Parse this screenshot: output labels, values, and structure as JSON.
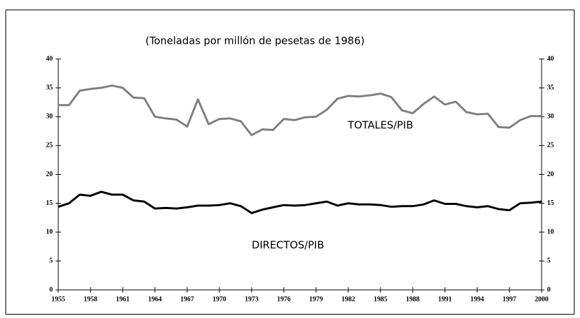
{
  "chart_data": {
    "type": "line",
    "title": "(Toneladas por millón de pesetas de 1986)",
    "x": [
      1955,
      1956,
      1957,
      1958,
      1959,
      1960,
      1961,
      1962,
      1963,
      1964,
      1965,
      1966,
      1967,
      1968,
      1969,
      1970,
      1971,
      1972,
      1973,
      1974,
      1975,
      1976,
      1977,
      1978,
      1979,
      1980,
      1981,
      1982,
      1983,
      1984,
      1985,
      1986,
      1987,
      1988,
      1989,
      1990,
      1991,
      1992,
      1993,
      1994,
      1995,
      1996,
      1997,
      1998,
      1999,
      2000
    ],
    "series": [
      {
        "name": "TOTALES/PIB",
        "color": "#7f7f7f",
        "values": [
          32,
          32,
          34.5,
          34.8,
          35,
          35.4,
          35,
          33.3,
          33.2,
          30,
          29.7,
          29.5,
          28.3,
          33,
          28.7,
          29.6,
          29.7,
          29.2,
          26.8,
          27.8,
          27.7,
          29.6,
          29.4,
          29.9,
          30,
          31.2,
          33.1,
          33.6,
          33.5,
          33.7,
          34,
          33.4,
          31.1,
          30.6,
          32.2,
          33.5,
          32.1,
          32.6,
          30.8,
          30.4,
          30.5,
          28.2,
          28.1,
          29.4,
          30.1,
          30.1
        ]
      },
      {
        "name": "DIRECTOS/PIB",
        "color": "#000000",
        "values": [
          14.4,
          15,
          16.5,
          16.3,
          17,
          16.5,
          16.5,
          15.5,
          15.3,
          14.1,
          14.2,
          14.1,
          14.3,
          14.6,
          14.6,
          14.7,
          15,
          14.5,
          13.3,
          13.9,
          14.3,
          14.7,
          14.6,
          14.7,
          15,
          15.3,
          14.6,
          15,
          14.8,
          14.8,
          14.7,
          14.4,
          14.5,
          14.5,
          14.8,
          15.5,
          14.9,
          14.9,
          14.5,
          14.3,
          14.5,
          14,
          13.8,
          15,
          15.1,
          15.3
        ]
      }
    ],
    "xlim": [
      1955,
      2000
    ],
    "xticks": [
      1955,
      1958,
      1961,
      1964,
      1967,
      1970,
      1973,
      1976,
      1979,
      1982,
      1985,
      1988,
      1991,
      1994,
      1997,
      2000
    ],
    "ylim": [
      0,
      40
    ],
    "yticks": [
      0,
      5,
      10,
      15,
      20,
      25,
      30,
      35,
      40
    ]
  }
}
